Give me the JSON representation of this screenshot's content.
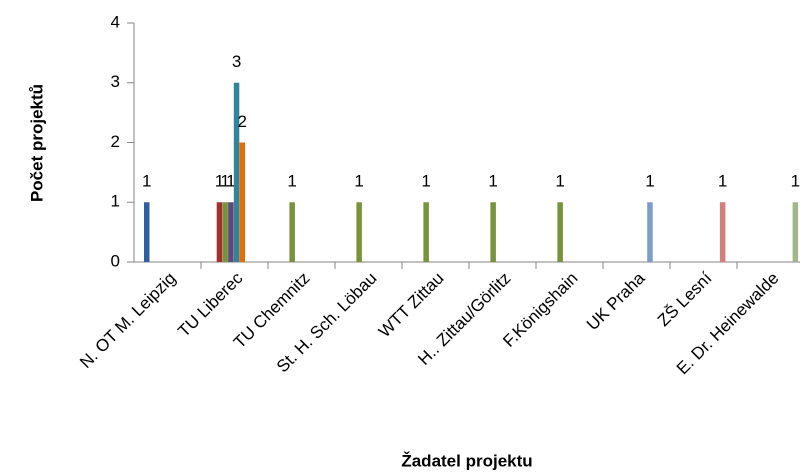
{
  "chart_data": {
    "type": "bar",
    "xlabel": "Žadatel projektu",
    "ylabel": "Počet projektů",
    "categories": [
      "N. OT M. Leipzig",
      "TU Liberec",
      "TU Chemnitz",
      "St. H. Sch. Löbau",
      "WTT Zittau",
      "H.. Zittau/Görlitz",
      "F.Königshain",
      "UK Praha",
      "ZŠ Lesní",
      "E. Dr. Heinewalde"
    ],
    "series": [
      {
        "color": "#2e5f9e",
        "values": [
          1,
          null,
          null,
          null,
          null,
          null,
          null,
          null,
          null,
          null
        ]
      },
      {
        "color": "#a0312f",
        "values": [
          null,
          1,
          null,
          null,
          null,
          null,
          null,
          null,
          null,
          null
        ]
      },
      {
        "color": "#77933c",
        "values": [
          null,
          1,
          1,
          1,
          1,
          1,
          1,
          null,
          null,
          null
        ]
      },
      {
        "color": "#604a7b",
        "values": [
          null,
          1,
          null,
          null,
          null,
          null,
          null,
          null,
          null,
          null
        ]
      },
      {
        "color": "#31849b",
        "values": [
          null,
          3,
          null,
          null,
          null,
          null,
          null,
          null,
          null,
          null
        ]
      },
      {
        "color": "#e46c0a",
        "values": [
          null,
          2,
          null,
          null,
          null,
          null,
          null,
          null,
          null,
          null
        ]
      },
      {
        "color": "#7e9ccb",
        "values": [
          null,
          null,
          null,
          null,
          null,
          null,
          null,
          1,
          null,
          null
        ]
      },
      {
        "color": "#d07f7d",
        "values": [
          null,
          null,
          null,
          null,
          null,
          null,
          null,
          null,
          1,
          null
        ]
      },
      {
        "color": "#a3b58a",
        "values": [
          null,
          null,
          null,
          null,
          null,
          null,
          null,
          null,
          null,
          1
        ]
      }
    ],
    "ylim": [
      0,
      4
    ],
    "yticks": [
      0,
      1,
      2,
      3,
      4
    ],
    "grid": false
  }
}
